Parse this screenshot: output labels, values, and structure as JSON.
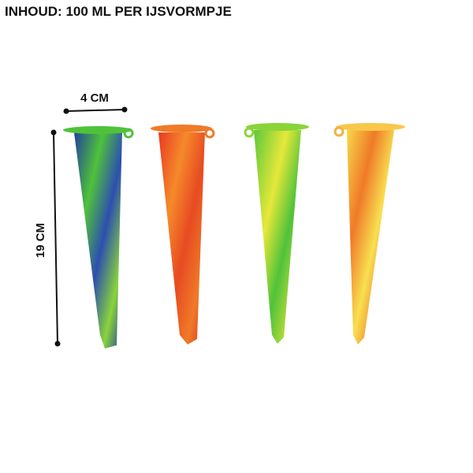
{
  "title": "INHOUD: 100 ML PER IJSVORMPJE",
  "width_label": "4 CM",
  "height_label": "19 CM"
}
